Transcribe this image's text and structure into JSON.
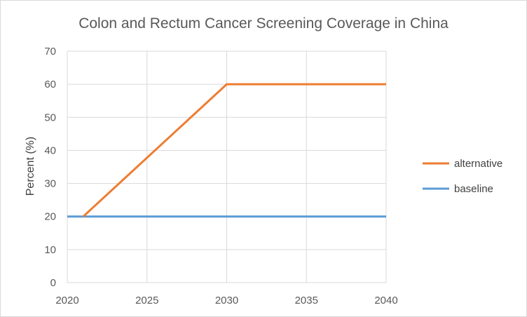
{
  "chart_data": {
    "type": "line",
    "title": "Colon and Rectum Cancer Screening Coverage in China",
    "xlabel": "",
    "ylabel": "Percent (%)",
    "xlim": [
      2020,
      2040
    ],
    "ylim": [
      0,
      70
    ],
    "xticks": [
      "2020",
      "2025",
      "2030",
      "2035",
      "2040"
    ],
    "yticks": [
      "0",
      "10",
      "20",
      "30",
      "40",
      "50",
      "60",
      "70"
    ],
    "grid": true,
    "legend_position": "right",
    "series": [
      {
        "name": "alternative",
        "color": "#ED7D31",
        "x": [
          2021,
          2030,
          2040
        ],
        "y": [
          20,
          60,
          60
        ]
      },
      {
        "name": "baseline",
        "color": "#5B9BD5",
        "x": [
          2020,
          2040
        ],
        "y": [
          20,
          20
        ]
      }
    ]
  }
}
